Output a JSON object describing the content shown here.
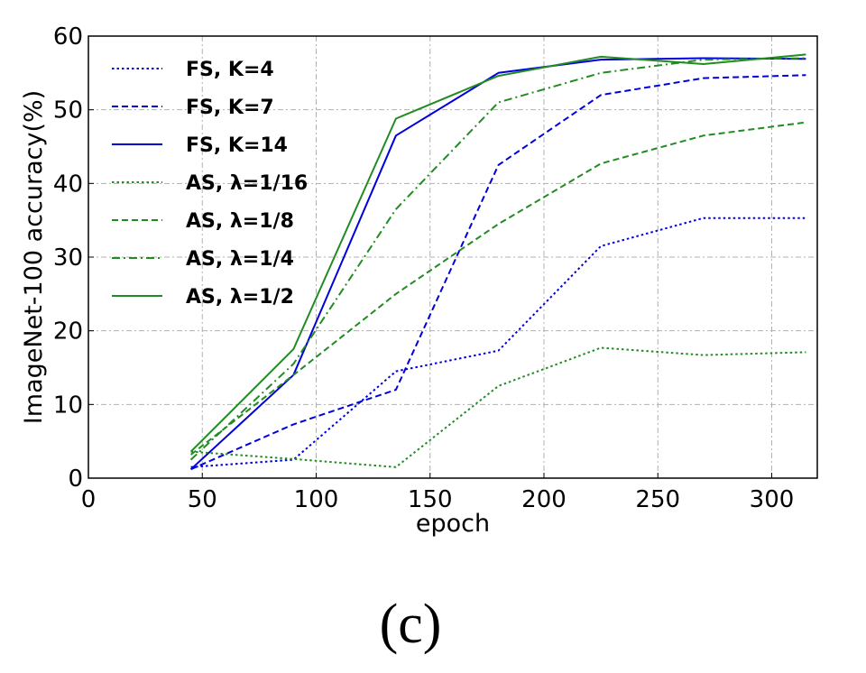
{
  "chart_data": {
    "type": "line",
    "xlabel": "epoch",
    "ylabel": "ImageNet-100 accuracy(%)",
    "xlim": [
      0,
      320
    ],
    "ylim": [
      0,
      60
    ],
    "xticks": [
      "0",
      "50",
      "100",
      "150",
      "200",
      "250",
      "300"
    ],
    "yticks": [
      "0",
      "10",
      "20",
      "30",
      "40",
      "50",
      "60"
    ],
    "grid": true,
    "legend_position": "top-left",
    "x": [
      45,
      90,
      135,
      180,
      225,
      270,
      315
    ],
    "series": [
      {
        "name": "FS, K=4",
        "color": "#0000dd",
        "style": "dotted",
        "values": [
          1.5,
          2.5,
          14.5,
          17.3,
          31.5,
          35.3,
          35.3
        ]
      },
      {
        "name": "FS, K=7",
        "color": "#0000dd",
        "style": "dashed",
        "values": [
          1.2,
          7.3,
          12.0,
          42.5,
          52.0,
          54.3,
          54.7
        ]
      },
      {
        "name": "FS, K=14",
        "color": "#0000dd",
        "style": "solid",
        "values": [
          1.2,
          14.0,
          46.5,
          55.0,
          56.8,
          57.0,
          56.9
        ]
      },
      {
        "name": "AS, λ=1/16",
        "color": "#228b22",
        "style": "dotted",
        "values": [
          3.6,
          2.6,
          1.5,
          12.5,
          17.7,
          16.7,
          17.1
        ]
      },
      {
        "name": "AS, λ=1/8",
        "color": "#228b22",
        "style": "dashed",
        "values": [
          3.2,
          14.0,
          25.0,
          34.5,
          42.7,
          46.5,
          48.3
        ]
      },
      {
        "name": "AS, λ=1/4",
        "color": "#228b22",
        "style": "dashdot",
        "values": [
          2.5,
          15.5,
          36.5,
          51.0,
          55.0,
          56.8,
          57.0
        ]
      },
      {
        "name": "AS, λ=1/2",
        "color": "#228b22",
        "style": "solid",
        "values": [
          3.6,
          17.5,
          48.8,
          54.6,
          57.2,
          56.2,
          57.5
        ]
      }
    ]
  },
  "caption": "(c)"
}
